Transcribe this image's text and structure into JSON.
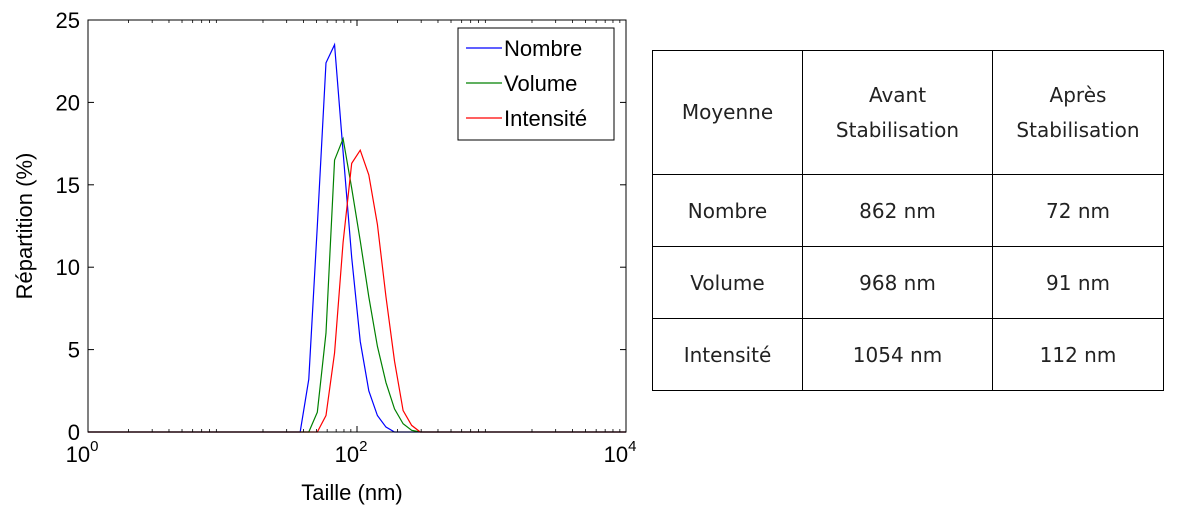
{
  "chart_data": {
    "type": "line",
    "xscale": "log",
    "xlabel": "Taille (nm)",
    "ylabel": "Répartition (%)",
    "xlim": [
      1,
      10000
    ],
    "ylim": [
      0,
      25
    ],
    "xticks": [
      {
        "value": 1,
        "base": "10",
        "exp": "0"
      },
      {
        "value": 100,
        "base": "10",
        "exp": "2"
      },
      {
        "value": 10000,
        "base": "10",
        "exp": "4"
      }
    ],
    "yticks": [
      0,
      5,
      10,
      15,
      20,
      25
    ],
    "legend": "top-right",
    "series": [
      {
        "name": "Nombre",
        "color": "#0000ff",
        "x": [
          1,
          37.8,
          43.8,
          50.7,
          58.8,
          68.1,
          78.8,
          91.3,
          105.7,
          122.4,
          141.8,
          164.2,
          190.1,
          220.2,
          10000
        ],
        "y": [
          0,
          0,
          3.2,
          12.5,
          22.4,
          23.5,
          17.0,
          10.6,
          5.5,
          2.5,
          1.0,
          0.3,
          0,
          0,
          0
        ]
      },
      {
        "name": "Volume",
        "color": "#008000",
        "x": [
          1,
          43.8,
          50.7,
          58.8,
          68.1,
          78.8,
          91.3,
          105.7,
          122.4,
          141.8,
          164.2,
          190.1,
          220.2,
          255.0,
          295.3,
          10000
        ],
        "y": [
          0,
          0,
          1.2,
          6.0,
          16.5,
          17.8,
          14.8,
          11.6,
          8.2,
          5.2,
          3.0,
          1.4,
          0.5,
          0.1,
          0,
          0
        ]
      },
      {
        "name": "Intensité",
        "color": "#ff0000",
        "x": [
          1,
          50.7,
          58.8,
          68.1,
          78.8,
          91.3,
          105.7,
          122.4,
          141.8,
          164.2,
          190.1,
          220.2,
          255.0,
          295.3,
          10000
        ],
        "y": [
          0,
          0,
          1.0,
          4.8,
          11.5,
          16.3,
          17.1,
          15.6,
          12.6,
          8.2,
          4.3,
          1.3,
          0.4,
          0,
          0
        ]
      }
    ]
  },
  "table": {
    "header": [
      "Moyenne",
      "Avant Stabilisation",
      "Après Stabilisation"
    ],
    "header_lines": [
      [
        "Moyenne"
      ],
      [
        "Avant",
        "Stabilisation"
      ],
      [
        "Après",
        "Stabilisation"
      ]
    ],
    "rows": [
      [
        "Nombre",
        "862 nm",
        "72 nm"
      ],
      [
        "Volume",
        "968 nm",
        "91 nm"
      ],
      [
        "Intensité",
        "1054 nm",
        "112 nm"
      ]
    ]
  }
}
